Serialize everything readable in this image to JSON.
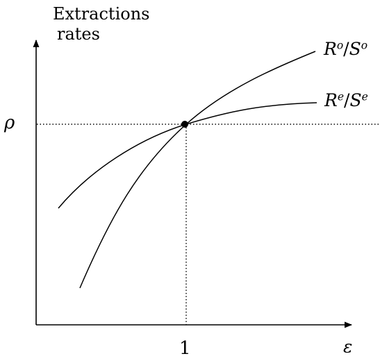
{
  "diagram": {
    "y_axis_label_line1": "Extractions",
    "y_axis_label_line2": "rates",
    "x_axis_symbol": "ε",
    "y_tick_label": "ρ",
    "x_tick_label": "1",
    "curve_o_label": {
      "r": "R",
      "r_sup": "o",
      "slash": "/",
      "s": "S",
      "s_sup": "o"
    },
    "curve_e_label": {
      "r": "R",
      "r_sup": "e",
      "slash": "/",
      "s": "S",
      "s_sup": "e"
    }
  },
  "colors": {
    "ink": "#000000",
    "background": "#ffffff"
  }
}
